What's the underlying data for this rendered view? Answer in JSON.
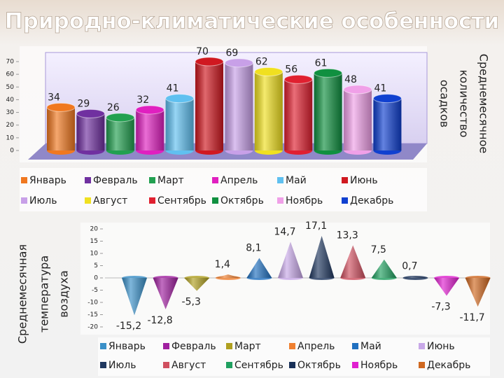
{
  "title": "Природно-климатические особенности",
  "chart_data": [
    {
      "type": "bar",
      "y_label": [
        "Среднемесячное",
        "количество",
        "осадков"
      ],
      "categories": [
        "Январь",
        "Февраль",
        "Март",
        "Апрель",
        "Май",
        "Июнь",
        "Июль",
        "Август",
        "Сентябрь",
        "Октябрь",
        "Ноябрь",
        "Декабрь"
      ],
      "values": [
        34,
        29,
        26,
        32,
        41,
        70,
        69,
        62,
        56,
        61,
        48,
        41
      ],
      "colors": [
        "#f07820",
        "#7030a0",
        "#22a050",
        "#e020c0",
        "#60c0f0",
        "#d01820",
        "#c8a0e8",
        "#f0e020",
        "#e02030",
        "#109040",
        "#f0a0e8",
        "#1040d0"
      ],
      "ylim": [
        0,
        70
      ],
      "yticks": [
        0,
        10,
        20,
        30,
        40,
        50,
        60,
        70
      ]
    },
    {
      "type": "cone",
      "y_label": [
        "Среднемесячная",
        "температура",
        "воздуха"
      ],
      "categories": [
        "Январь",
        "Февраль",
        "Март",
        "Апрель",
        "Май",
        "Июнь",
        "Июль",
        "Август",
        "Сентябрь",
        "Октябрь",
        "Ноябрь",
        "Декабрь"
      ],
      "values": [
        -15.2,
        -12.8,
        -5.3,
        1.4,
        8.1,
        14.7,
        17.1,
        13.3,
        7.5,
        0.7,
        -7.3,
        -11.7
      ],
      "value_labels": [
        "-15,2",
        "-12,8",
        "-5,3",
        "1,4",
        "8,1",
        "14,7",
        "17,1",
        "13,3",
        "7,5",
        "0,7",
        "-7,3",
        "-11,7"
      ],
      "colors": [
        "#3a90c8",
        "#a020a0",
        "#b0a020",
        "#f08030",
        "#2070c0",
        "#c8a8e8",
        "#203860",
        "#d05060",
        "#20a060",
        "#183058",
        "#e020d0",
        "#d06820"
      ],
      "ylim": [
        -20,
        20
      ],
      "yticks": [
        -20,
        -15,
        -10,
        -5,
        0,
        5,
        10,
        15,
        20
      ]
    }
  ]
}
